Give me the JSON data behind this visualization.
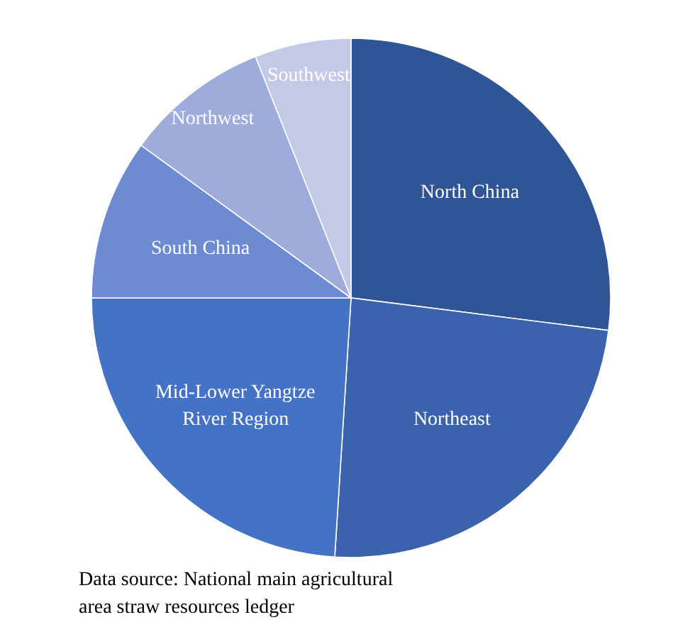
{
  "chart_data": {
    "type": "pie",
    "categories": [
      "North China",
      "Northeast",
      "Mid-Lower Yangtze River Region",
      "South China",
      "Northwest",
      "Southwest"
    ],
    "values": [
      27,
      24,
      24,
      10,
      9,
      6
    ],
    "colors": [
      "#2f5597",
      "#3b62ac",
      "#4472c4",
      "#6d8bd3",
      "#9eacdc",
      "#c3c9e6"
    ],
    "annotations": [
      "Data source: National main agricultural area straw resources ledger"
    ]
  }
}
